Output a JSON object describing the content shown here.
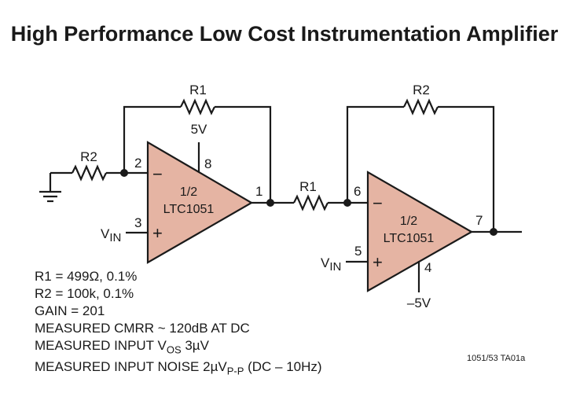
{
  "title": "High Performance Low Cost Instrumentation Amplifier",
  "components": {
    "r1_top": "R1",
    "r2_left": "R2",
    "r1_mid": "R1",
    "r2_top": "R2",
    "op1": {
      "line1": "1/2",
      "line2": "LTC1051"
    },
    "op2": {
      "line1": "1/2",
      "line2": "LTC1051"
    }
  },
  "pins": {
    "p2": "2",
    "p8": "8",
    "p3": "3",
    "p1": "1",
    "p6": "6",
    "p5": "5",
    "p4": "4",
    "p7": "7"
  },
  "supplies": {
    "pos": "5V",
    "neg": "–5V"
  },
  "inputs": {
    "vin_main": "V",
    "vin_sub": "IN"
  },
  "specs": {
    "r1": "R1 = 499Ω, 0.1%",
    "r2": "R2 = 100k, 0.1%",
    "gain": "GAIN = 201",
    "cmrr": "MEASURED CMRR ~ 120dB AT DC",
    "vos_prefix": "MEASURED INPUT V",
    "vos_sub": "OS",
    "vos_suffix": " 3µV",
    "noise_prefix": "MEASURED INPUT NOISE 2µV",
    "noise_sub": "P-P",
    "noise_suffix": " (DC – 10Hz)"
  },
  "figure_code": "1051/53 TA01a",
  "op_symbols": {
    "minus": "−",
    "plus": "+"
  }
}
